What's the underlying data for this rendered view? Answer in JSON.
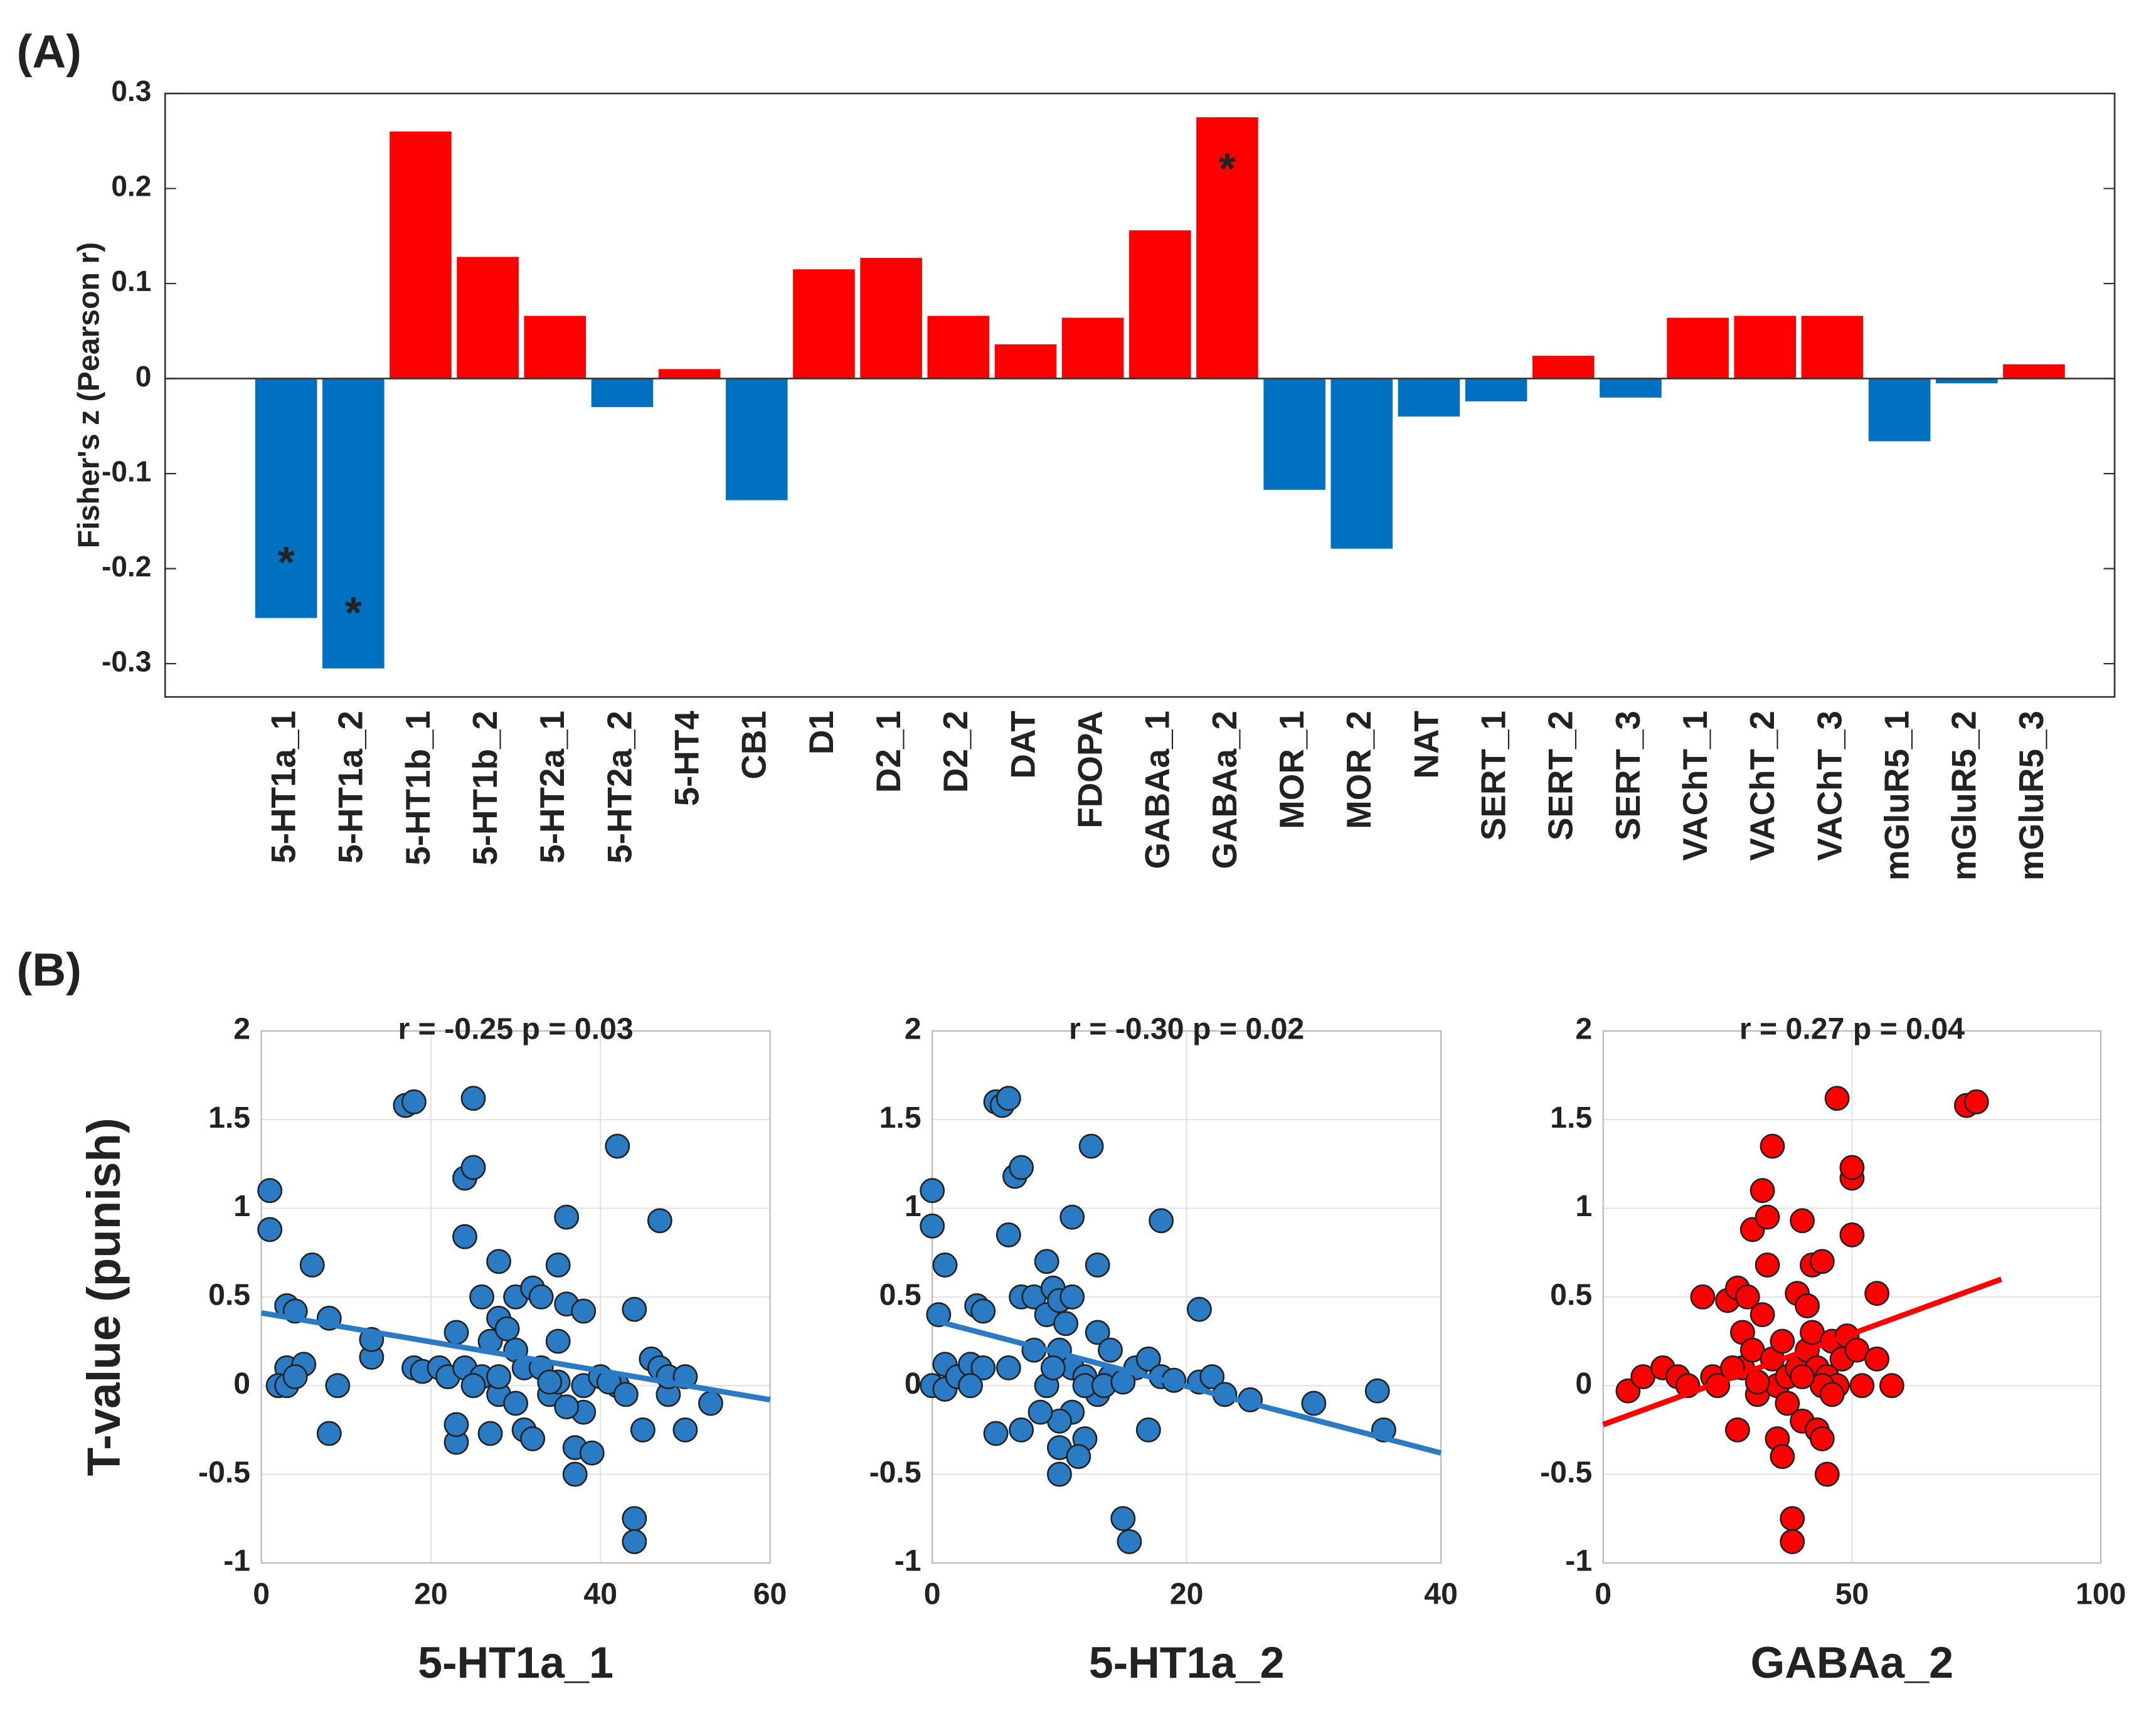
{
  "chart_data": [
    {
      "type": "bar",
      "panel": "(A)",
      "ylabel": "Fisher's z (Pearson r)",
      "categories": [
        "5-HT1a_1",
        "5-HT1a_2",
        "5-HT1b_1",
        "5-HT1b_2",
        "5-HT2a_1",
        "5-HT2a_2",
        "5-HT4",
        "CB1",
        "D1",
        "D2_1",
        "D2_2",
        "DAT",
        "FDOPA",
        "GABAa_1",
        "GABAa_2",
        "MOR_1",
        "MOR_2",
        "NAT",
        "SERT_1",
        "SERT_2",
        "SERT_3",
        "VAChT_1",
        "VAChT_2",
        "VAChT_3",
        "mGluR5_1",
        "mGluR5_2",
        "mGluR5_3"
      ],
      "values": [
        -0.252,
        -0.305,
        0.26,
        0.128,
        0.066,
        -0.03,
        0.01,
        -0.128,
        0.115,
        0.127,
        0.066,
        0.036,
        0.064,
        0.156,
        0.275,
        -0.117,
        -0.179,
        -0.04,
        -0.024,
        0.024,
        -0.02,
        0.064,
        0.066,
        0.066,
        -0.066,
        -0.005,
        0.015
      ],
      "positive_color": "#ff0000",
      "negative_color": "#0070c0",
      "annotations": [
        {
          "text": "*",
          "category": "5-HT1a_1"
        },
        {
          "text": "*",
          "category": "5-HT1a_2"
        },
        {
          "text": "*",
          "category": "GABAa_2"
        }
      ],
      "ylim": [
        -0.335,
        0.3
      ],
      "yticks": [
        -0.3,
        -0.2,
        -0.1,
        0,
        0.1,
        0.2,
        0.3
      ]
    },
    {
      "type": "scatter",
      "panel": "(B)",
      "ylabel": "T-value (punish)",
      "title": "r = -0.25  p = 0.03",
      "xlabel": "5-HT1a_1",
      "color": "#2a7bc4",
      "grid": true,
      "x": [
        1,
        1,
        3,
        4,
        3,
        2,
        3,
        5,
        4,
        6,
        8,
        8,
        9,
        13,
        13,
        17,
        18,
        18,
        19,
        21,
        22,
        23,
        23,
        23,
        24,
        24,
        25,
        25,
        24,
        26,
        26,
        27,
        28,
        28,
        28,
        29,
        30,
        30,
        31,
        31,
        32,
        33,
        32,
        33,
        34,
        35,
        35,
        35,
        36,
        36,
        37,
        37,
        38,
        38,
        38,
        39,
        40,
        42,
        42,
        44,
        44,
        44,
        45,
        46,
        47,
        47,
        48,
        48,
        50,
        50,
        53,
        28,
        27,
        25,
        30,
        34,
        36,
        41,
        43
      ],
      "values": [
        1.1,
        0.88,
        0.45,
        0.42,
        0.1,
        0,
        0,
        0.12,
        0.05,
        0.68,
        0.38,
        -0.27,
        0,
        0.16,
        0.26,
        1.58,
        1.6,
        0.1,
        0.08,
        0.1,
        0.05,
        -0.32,
        0.3,
        -0.22,
        0.84,
        1.17,
        1.23,
        1.62,
        0.1,
        0.5,
        0.05,
        0.25,
        0.38,
        0.7,
        -0.05,
        0.32,
        0.2,
        0.5,
        -0.25,
        0.1,
        0.55,
        0.5,
        -0.3,
        0.1,
        -0.05,
        0.25,
        0.68,
        0.02,
        0.95,
        0.46,
        -0.5,
        -0.35,
        0.42,
        -0.15,
        0,
        -0.38,
        0.05,
        1.35,
        0,
        0.43,
        -0.75,
        -0.88,
        -0.25,
        0.15,
        0.1,
        0.93,
        -0.05,
        0.05,
        0.05,
        -0.25,
        -0.1,
        0.05,
        -0.27,
        0,
        -0.1,
        0.02,
        -0.12,
        0.02,
        -0.05
      ],
      "trend": {
        "x": [
          0,
          60
        ],
        "values": [
          0.41,
          -0.08
        ]
      },
      "xlim": [
        0,
        60
      ],
      "xticks": [
        0,
        20,
        40,
        60
      ],
      "ylim": [
        -1,
        2
      ],
      "yticks": [
        -1,
        -0.5,
        0,
        0.5,
        1,
        1.5,
        2
      ]
    },
    {
      "type": "scatter",
      "title": "r = -0.30  p = 0.02",
      "xlabel": "5-HT1a_2",
      "color": "#2a7bc4",
      "grid": true,
      "x": [
        0,
        0,
        1,
        0.5,
        0,
        1,
        1,
        2,
        3,
        3.5,
        4,
        4,
        5,
        5.5,
        6,
        6,
        6.5,
        7,
        5,
        6,
        7,
        7,
        8,
        8,
        9,
        9,
        9.5,
        10,
        10,
        10,
        10,
        11,
        11,
        11,
        11,
        12,
        12,
        12.5,
        13,
        13,
        13,
        14,
        14,
        15,
        15.5,
        16,
        17,
        17,
        18,
        18,
        21,
        21,
        22,
        23,
        25,
        30,
        35,
        35.5,
        9,
        10,
        11.5,
        12,
        8.5,
        13.5,
        9.5,
        10.5,
        3,
        15,
        19
      ],
      "values": [
        1.1,
        0.9,
        0.68,
        0.4,
        0,
        0.12,
        -0.02,
        0.05,
        0.12,
        0.45,
        0.42,
        0.1,
        1.6,
        1.58,
        1.62,
        0.85,
        1.18,
        1.23,
        -0.27,
        0.1,
        0.5,
        -0.25,
        0.5,
        0.2,
        0.7,
        0.4,
        0.55,
        0.48,
        0.2,
        -0.5,
        -0.35,
        0.5,
        0.95,
        0.1,
        -0.15,
        0.05,
        -0.3,
        1.35,
        0.68,
        0.3,
        -0.05,
        0.2,
        0.05,
        -0.75,
        -0.88,
        0.1,
        0.15,
        -0.25,
        0.93,
        0.05,
        0.43,
        0.02,
        0.05,
        -0.05,
        -0.08,
        -0.1,
        -0.03,
        -0.25,
        0,
        -0.2,
        -0.4,
        0,
        -0.15,
        0,
        0.1,
        0.35,
        0,
        0.02,
        0.03
      ],
      "trend": {
        "x": [
          0,
          40
        ],
        "values": [
          0.37,
          -0.38
        ]
      },
      "xlim": [
        0,
        40
      ],
      "xticks": [
        0,
        20,
        40
      ],
      "ylim": [
        -1,
        2
      ],
      "yticks": [
        -1,
        -0.5,
        0,
        0.5,
        1,
        1.5,
        2
      ]
    },
    {
      "type": "scatter",
      "title": "r = 0.27  p = 0.04",
      "xlabel": "GABAa_2",
      "color": "#ff0000",
      "grid": true,
      "x": [
        5,
        8,
        12,
        15,
        17,
        20,
        22,
        23,
        25,
        27,
        27,
        28,
        28,
        29,
        30,
        30,
        31,
        32,
        32,
        33,
        33,
        34,
        34,
        35,
        35,
        36,
        37,
        37,
        38,
        38,
        39,
        39,
        40,
        40,
        41,
        41,
        42,
        42,
        43,
        43,
        44,
        44,
        45,
        45,
        46,
        47,
        47,
        48,
        49,
        50,
        50,
        50,
        51,
        52,
        55,
        55,
        58,
        73,
        75,
        36,
        26,
        44,
        31,
        40,
        46
      ],
      "values": [
        -0.03,
        0.05,
        0.1,
        0.05,
        0,
        0.5,
        0.05,
        0,
        0.48,
        0.55,
        -0.25,
        0.3,
        0.1,
        0.5,
        0.88,
        0.2,
        -0.05,
        0.4,
        1.1,
        0.95,
        0.68,
        1.35,
        0.15,
        -0.3,
        0,
        0.25,
        -0.1,
        0.05,
        -0.75,
        -0.88,
        0.52,
        0.1,
        0.93,
        -0.2,
        0.45,
        0.2,
        0.68,
        0.3,
        -0.25,
        0.1,
        0.7,
        -0.3,
        0.05,
        -0.5,
        0.25,
        1.62,
        0,
        0.15,
        0.28,
        1.17,
        1.23,
        0.85,
        0.2,
        0,
        0.52,
        0.15,
        0,
        1.58,
        1.6,
        -0.4,
        0.1,
        0,
        0.02,
        0.05,
        -0.05
      ],
      "trend": {
        "x": [
          0,
          80
        ],
        "values": [
          -0.22,
          0.6
        ]
      },
      "xlim": [
        0,
        100
      ],
      "xticks": [
        0,
        50,
        100
      ],
      "ylim": [
        -1,
        2
      ],
      "yticks": [
        -1,
        -0.5,
        0,
        0.5,
        1,
        1.5,
        2
      ]
    }
  ]
}
